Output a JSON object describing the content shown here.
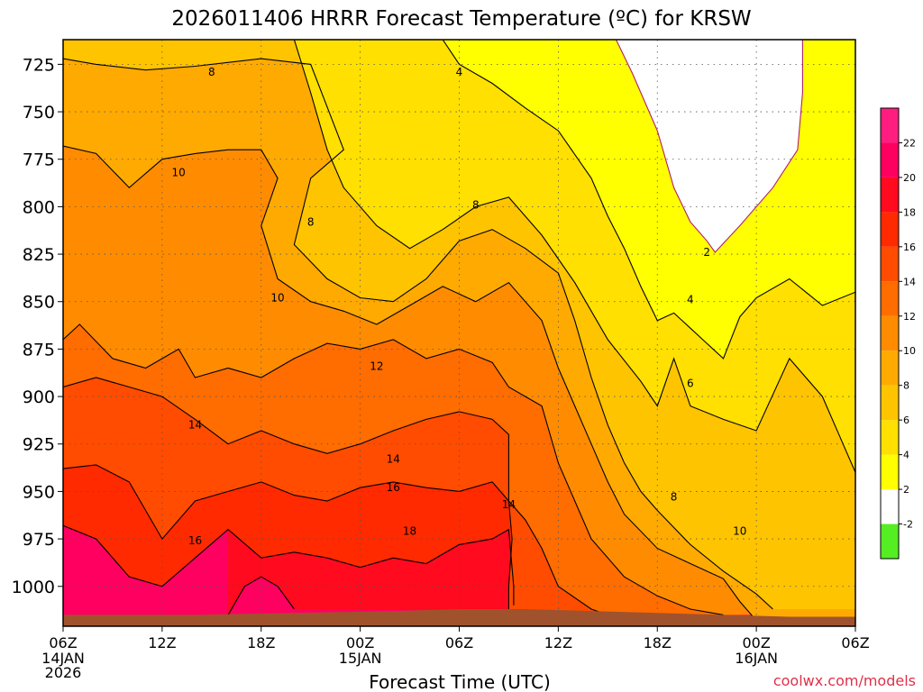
{
  "chart_data": {
    "type": "contour",
    "title": "2026011406 HRRR Forecast Temperature (ºC) for KRSW",
    "xlabel": "Forecast Time (UTC)",
    "ylabel": "",
    "x_ticks": [
      {
        "label": "06Z",
        "sub": [
          "14JAN",
          "2026"
        ],
        "hours": 0
      },
      {
        "label": "12Z",
        "sub": [],
        "hours": 6
      },
      {
        "label": "18Z",
        "sub": [],
        "hours": 12
      },
      {
        "label": "00Z",
        "sub": [
          "15JAN"
        ],
        "hours": 18
      },
      {
        "label": "06Z",
        "sub": [],
        "hours": 24
      },
      {
        "label": "12Z",
        "sub": [],
        "hours": 30
      },
      {
        "label": "18Z",
        "sub": [],
        "hours": 36
      },
      {
        "label": "00Z",
        "sub": [
          "16JAN"
        ],
        "hours": 42
      },
      {
        "label": "06Z",
        "sub": [],
        "hours": 48
      }
    ],
    "xlim": [
      0,
      48
    ],
    "y_ticks": [
      725,
      750,
      775,
      800,
      825,
      850,
      875,
      900,
      925,
      950,
      975,
      1000
    ],
    "ylim": [
      712,
      1021
    ],
    "y_reversed": true,
    "grid": "dotted",
    "colorbar": {
      "levels": [
        -2,
        2,
        4,
        6,
        8,
        10,
        12,
        14,
        16,
        18,
        20,
        22
      ],
      "labels": [
        "-2",
        "2",
        "4",
        "6",
        "8",
        "10",
        "12",
        "14",
        "16",
        "18",
        "20",
        "22"
      ],
      "colors": [
        "#55ee22",
        "#ffffff",
        "#ffff00",
        "#ffe000",
        "#ffc400",
        "#ffaa00",
        "#ff8c00",
        "#ff6c00",
        "#ff4c00",
        "#ff2a00",
        "#ff0a1e",
        "#ff0060",
        "#ff1e80"
      ]
    },
    "series": [
      {
        "level": 2,
        "points": [
          [
            33.5,
            712
          ],
          [
            34.5,
            730
          ],
          [
            36,
            760
          ],
          [
            37,
            790
          ],
          [
            38,
            808
          ],
          [
            39,
            818
          ],
          [
            39.5,
            824
          ],
          [
            41,
            810
          ],
          [
            43,
            790
          ],
          [
            44.5,
            770
          ],
          [
            44.8,
            740
          ],
          [
            44.8,
            712
          ]
        ]
      },
      {
        "level": 4,
        "points": [
          [
            23,
            712
          ],
          [
            24,
            725
          ],
          [
            26,
            735
          ],
          [
            28,
            748
          ],
          [
            30,
            760
          ],
          [
            32,
            785
          ],
          [
            33,
            805
          ],
          [
            34,
            822
          ],
          [
            35,
            842
          ],
          [
            36,
            860
          ],
          [
            37,
            856
          ],
          [
            38,
            864
          ],
          [
            39,
            872
          ],
          [
            40,
            880
          ],
          [
            41,
            858
          ],
          [
            42,
            848
          ],
          [
            44,
            838
          ],
          [
            46,
            852
          ],
          [
            48,
            845
          ]
        ]
      },
      {
        "level": 6,
        "points": [
          [
            14,
            712
          ],
          [
            15,
            740
          ],
          [
            16,
            770
          ],
          [
            17,
            790
          ],
          [
            19,
            810
          ],
          [
            21,
            822
          ],
          [
            23,
            812
          ],
          [
            25,
            800
          ],
          [
            27,
            795
          ],
          [
            29,
            815
          ],
          [
            31,
            840
          ],
          [
            33,
            870
          ],
          [
            35,
            892
          ],
          [
            36,
            905
          ],
          [
            37,
            880
          ],
          [
            38,
            905
          ],
          [
            40,
            912
          ],
          [
            42,
            918
          ],
          [
            44,
            880
          ],
          [
            46,
            900
          ],
          [
            47,
            920
          ],
          [
            48,
            940
          ]
        ]
      },
      {
        "level": 8,
        "points": [
          [
            0,
            722
          ],
          [
            2,
            725
          ],
          [
            5,
            728
          ],
          [
            8,
            726
          ],
          [
            12,
            722
          ],
          [
            15,
            725
          ],
          [
            17,
            770
          ],
          [
            15,
            785
          ],
          [
            14,
            820
          ],
          [
            16,
            838
          ],
          [
            18,
            848
          ],
          [
            20,
            850
          ],
          [
            22,
            838
          ],
          [
            24,
            818
          ],
          [
            26,
            812
          ],
          [
            28,
            822
          ],
          [
            30,
            835
          ],
          [
            31,
            860
          ],
          [
            32,
            890
          ],
          [
            33,
            915
          ],
          [
            34,
            935
          ],
          [
            35,
            950
          ],
          [
            36,
            960
          ],
          [
            38,
            978
          ],
          [
            40,
            992
          ],
          [
            42,
            1004
          ],
          [
            43,
            1012
          ]
        ]
      },
      {
        "level": 10,
        "points": [
          [
            0,
            768
          ],
          [
            2,
            772
          ],
          [
            4,
            790
          ],
          [
            6,
            775
          ],
          [
            8,
            772
          ],
          [
            10,
            770
          ],
          [
            12,
            770
          ],
          [
            13,
            785
          ],
          [
            12,
            810
          ],
          [
            13,
            838
          ],
          [
            15,
            850
          ],
          [
            17,
            855
          ],
          [
            19,
            862
          ],
          [
            21,
            852
          ],
          [
            23,
            842
          ],
          [
            25,
            850
          ],
          [
            27,
            840
          ],
          [
            29,
            860
          ],
          [
            30,
            885
          ],
          [
            31,
            905
          ],
          [
            32,
            925
          ],
          [
            33,
            945
          ],
          [
            34,
            962
          ],
          [
            36,
            980
          ],
          [
            38,
            988
          ],
          [
            40,
            996
          ],
          [
            41,
            1008
          ],
          [
            42,
            1018
          ]
        ]
      },
      {
        "level": 12,
        "points": [
          [
            0,
            870
          ],
          [
            1,
            862
          ],
          [
            3,
            880
          ],
          [
            5,
            885
          ],
          [
            7,
            875
          ],
          [
            8,
            890
          ],
          [
            10,
            885
          ],
          [
            12,
            890
          ],
          [
            14,
            880
          ],
          [
            16,
            872
          ],
          [
            18,
            875
          ],
          [
            20,
            870
          ],
          [
            22,
            880
          ],
          [
            24,
            875
          ],
          [
            26,
            882
          ],
          [
            27,
            895
          ],
          [
            29,
            905
          ],
          [
            30,
            935
          ],
          [
            31,
            955
          ],
          [
            32,
            975
          ],
          [
            34,
            995
          ],
          [
            36,
            1005
          ],
          [
            38,
            1012
          ],
          [
            40,
            1015
          ]
        ]
      },
      {
        "level": 14,
        "points": [
          [
            0,
            895
          ],
          [
            2,
            890
          ],
          [
            4,
            895
          ],
          [
            6,
            900
          ],
          [
            8,
            912
          ],
          [
            10,
            925
          ],
          [
            12,
            918
          ],
          [
            14,
            925
          ],
          [
            16,
            930
          ],
          [
            18,
            925
          ],
          [
            20,
            918
          ],
          [
            22,
            912
          ],
          [
            24,
            908
          ],
          [
            26,
            912
          ],
          [
            27,
            920
          ],
          [
            27,
            955
          ],
          [
            28,
            965
          ],
          [
            29,
            980
          ],
          [
            30,
            1000
          ],
          [
            32,
            1012
          ],
          [
            33,
            1015
          ]
        ]
      },
      {
        "level": 16,
        "points": [
          [
            0,
            938
          ],
          [
            2,
            936
          ],
          [
            4,
            945
          ],
          [
            6,
            975
          ],
          [
            8,
            955
          ],
          [
            10,
            950
          ],
          [
            12,
            945
          ],
          [
            14,
            952
          ],
          [
            16,
            955
          ],
          [
            18,
            948
          ],
          [
            20,
            945
          ],
          [
            22,
            948
          ],
          [
            24,
            950
          ],
          [
            26,
            945
          ],
          [
            27,
            955
          ],
          [
            27.2,
            975
          ],
          [
            27,
            1000
          ],
          [
            27,
            1015
          ]
        ]
      },
      {
        "level": 18,
        "points": [
          [
            0,
            968
          ],
          [
            2,
            975
          ],
          [
            4,
            995
          ],
          [
            6,
            1000
          ],
          [
            8,
            985
          ],
          [
            10,
            970
          ],
          [
            12,
            985
          ],
          [
            14,
            982
          ],
          [
            16,
            985
          ],
          [
            18,
            990
          ],
          [
            20,
            985
          ],
          [
            22,
            988
          ],
          [
            24,
            978
          ],
          [
            26,
            975
          ],
          [
            27,
            970
          ],
          [
            27.3,
            1000
          ],
          [
            27.3,
            1010
          ]
        ]
      },
      {
        "level": 20,
        "points": [
          [
            10,
            1015
          ],
          [
            11,
            1000
          ],
          [
            12,
            995
          ],
          [
            13,
            1000
          ],
          [
            14,
            1012
          ]
        ]
      }
    ],
    "contour_labels": [
      {
        "text": "8",
        "x": 9,
        "y": 729
      },
      {
        "text": "4",
        "x": 24,
        "y": 729
      },
      {
        "text": "10",
        "x": 7,
        "y": 782
      },
      {
        "text": "8",
        "x": 15,
        "y": 808
      },
      {
        "text": "8",
        "x": 25,
        "y": 799
      },
      {
        "text": "2",
        "x": 39,
        "y": 824
      },
      {
        "text": "10",
        "x": 13,
        "y": 848
      },
      {
        "text": "4",
        "x": 38,
        "y": 849
      },
      {
        "text": "12",
        "x": 19,
        "y": 884
      },
      {
        "text": "6",
        "x": 38,
        "y": 893
      },
      {
        "text": "14",
        "x": 8,
        "y": 915
      },
      {
        "text": "14",
        "x": 20,
        "y": 933
      },
      {
        "text": "16",
        "x": 20,
        "y": 948
      },
      {
        "text": "14",
        "x": 27,
        "y": 957
      },
      {
        "text": "8",
        "x": 37,
        "y": 953
      },
      {
        "text": "16",
        "x": 8,
        "y": 976
      },
      {
        "text": "18",
        "x": 21,
        "y": 971
      },
      {
        "text": "10",
        "x": 41,
        "y": 971
      }
    ]
  },
  "footer": {
    "attribution": "coolwx.com/models"
  }
}
